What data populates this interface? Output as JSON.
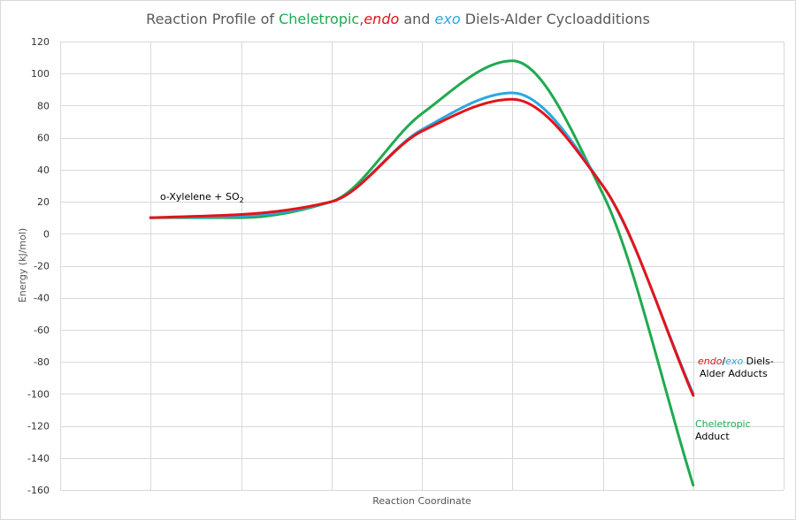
{
  "chart_data": {
    "type": "line",
    "title": {
      "prefix": "Reaction Profile of ",
      "cheletropic": "Cheletropic",
      "comma": ",",
      "endo": "endo",
      "and": " and ",
      "exo": "exo",
      "suffix": " Diels-Alder Cycloadditions"
    },
    "xlabel": "Reaction Coordinate",
    "ylabel": "Energy (kJ/mol)",
    "ylim": [
      -160,
      120
    ],
    "yticks": [
      120,
      100,
      80,
      60,
      40,
      20,
      0,
      -20,
      -40,
      -60,
      -80,
      -100,
      -120,
      -140,
      -160
    ],
    "xlim": [
      0,
      8
    ],
    "grid": true,
    "series": [
      {
        "key": "cheletropic",
        "color": "#1faa4f",
        "x": [
          1,
          2,
          3,
          4,
          5,
          6,
          7
        ],
        "y": [
          10,
          10,
          20,
          75,
          108,
          25,
          -157
        ]
      },
      {
        "key": "exo",
        "color": "#29a8e0",
        "x": [
          1,
          2,
          3,
          4,
          5,
          6,
          7
        ],
        "y": [
          10,
          11,
          20,
          65,
          88,
          30,
          -100
        ]
      },
      {
        "key": "endo",
        "color": "#e3141a",
        "x": [
          1,
          2,
          3,
          4,
          5,
          6,
          7
        ],
        "y": [
          10,
          12,
          20,
          64,
          84,
          30,
          -101
        ]
      }
    ],
    "annotations": {
      "reactants": {
        "text": "o-Xylelene + SO",
        "subscript": "2"
      },
      "diels_alder": {
        "endo": "endo",
        "slash": "/",
        "exo": "exo",
        "diels": " Diels-",
        "line2": "Alder Adducts"
      },
      "cheletropic": {
        "line1": "Cheletropic",
        "line2": "Adduct"
      }
    },
    "colors": {
      "cheletropic": "#1faa4f",
      "endo": "#e3141a",
      "exo": "#29a8e0",
      "grid": "#d9d9d9"
    }
  }
}
